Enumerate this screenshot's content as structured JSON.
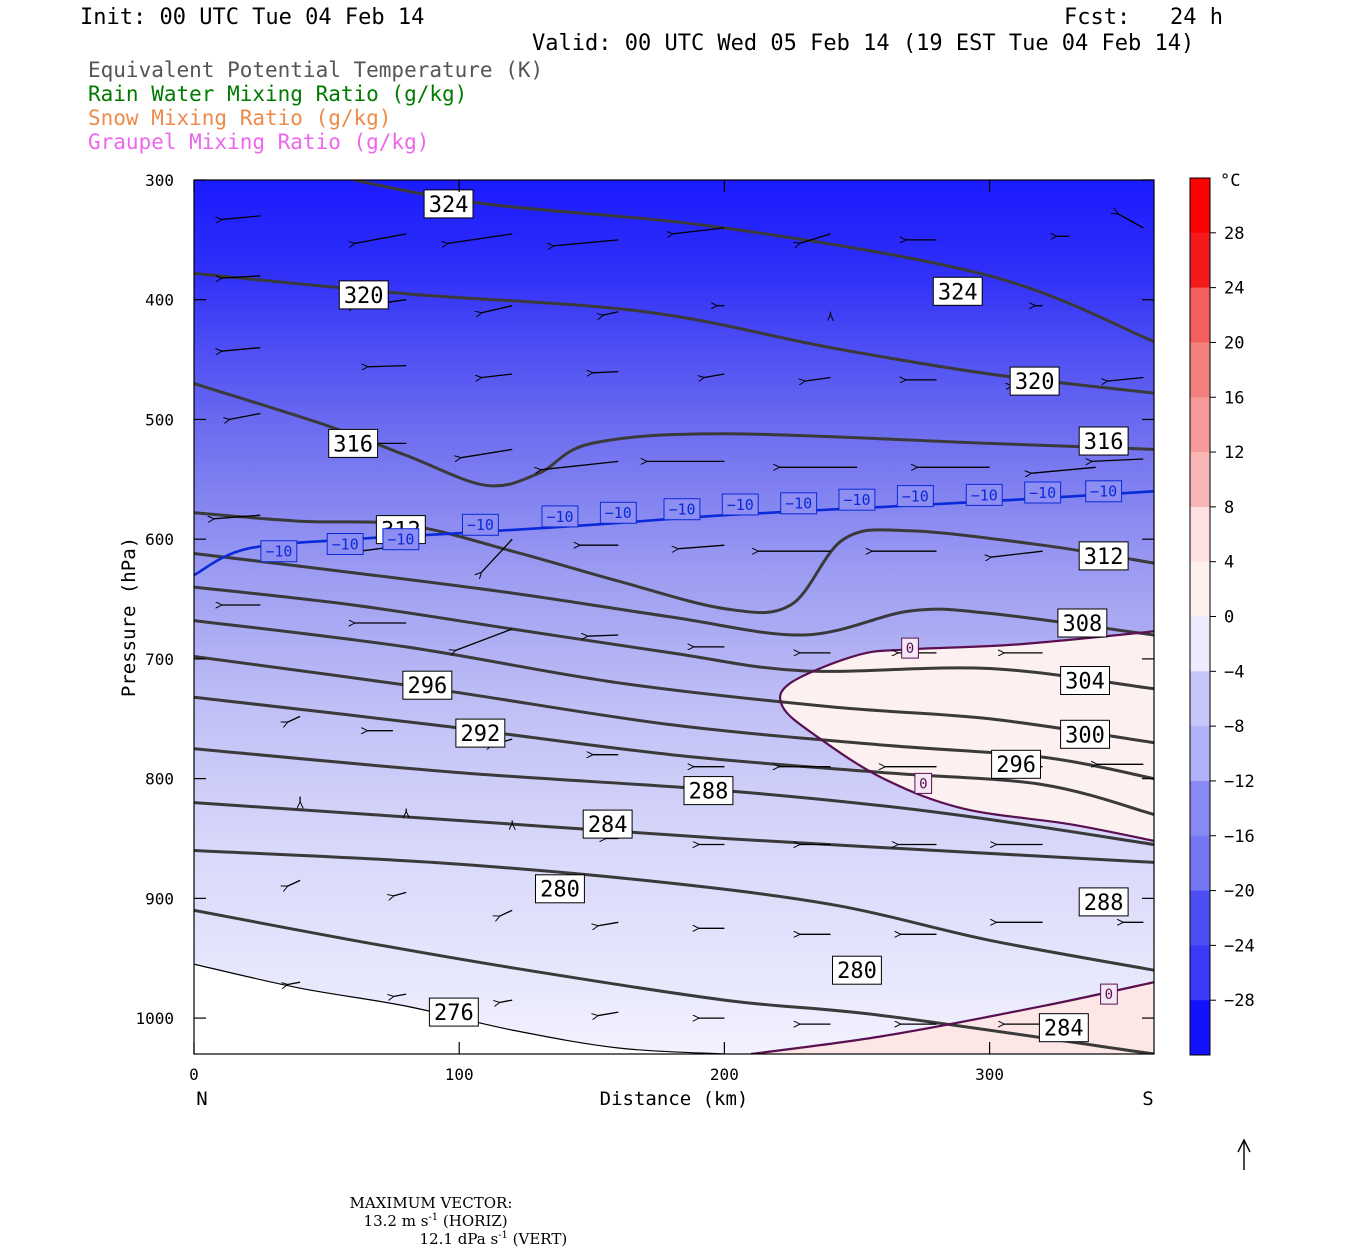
{
  "header": {
    "init": "Init: 00 UTC Tue 04 Feb 14",
    "fcst": "Fcst:   24 h",
    "valid": "Valid: 00 UTC Wed 05 Feb 14 (19 EST Tue 04 Feb 14)"
  },
  "legend": [
    {
      "label": "Equivalent Potential Temperature (K)",
      "color": "#555555"
    },
    {
      "label": "Rain Water Mixing Ratio (g/kg)",
      "color": "#007a00"
    },
    {
      "label": "Snow Mixing Ratio (g/kg)",
      "color": "#ee8a4a"
    },
    {
      "label": "Graupel Mixing Ratio (g/kg)",
      "color": "#ee66ee"
    }
  ],
  "footer": {
    "prefix": "MAXIMUM VECTOR:",
    "horiz": "13.2 m s",
    "horiz_tail": " (HORIZ)",
    "vert": "12.1 dPa s",
    "vert_tail": " (VERT)",
    "exp": "-1"
  },
  "chart_data": {
    "type": "cross-section",
    "xlabel": "Distance (km)",
    "ylabel": "Pressure (hPa)",
    "xlim": [
      0,
      362
    ],
    "ylim": [
      1030,
      300
    ],
    "x_ticks": [
      0,
      100,
      200,
      300
    ],
    "y_ticks": [
      300,
      400,
      500,
      600,
      700,
      800,
      900,
      1000
    ],
    "end_labels": {
      "left": "N",
      "right": "S"
    },
    "colorbar": {
      "unit": "°C",
      "range": [
        -32,
        32
      ],
      "ticks": [
        28,
        24,
        20,
        16,
        12,
        8,
        4,
        0,
        -4,
        -8,
        -12,
        -16,
        -20,
        -24,
        -28
      ]
    },
    "theta_e_contours": [
      {
        "value": 324,
        "points": [
          [
            60,
            300
          ],
          [
            110,
            320
          ],
          [
            200,
            340
          ],
          [
            300,
            380
          ],
          [
            362,
            435
          ]
        ],
        "labels": [
          [
            96,
            320
          ],
          [
            288,
            393
          ]
        ]
      },
      {
        "value": 320,
        "points": [
          [
            0,
            378
          ],
          [
            80,
            395
          ],
          [
            170,
            410
          ],
          [
            240,
            440
          ],
          [
            300,
            462
          ],
          [
            362,
            478
          ]
        ],
        "labels": [
          [
            64,
            396
          ],
          [
            317,
            468
          ]
        ]
      },
      {
        "value": 316,
        "points": [
          [
            0,
            470
          ],
          [
            50,
            505
          ],
          [
            80,
            530
          ],
          [
            110,
            555
          ],
          [
            130,
            545
          ],
          [
            150,
            520
          ],
          [
            200,
            512
          ],
          [
            300,
            520
          ],
          [
            362,
            525
          ]
        ],
        "labels": [
          [
            60,
            520
          ],
          [
            343,
            518
          ]
        ]
      },
      {
        "value": 312,
        "points": [
          [
            0,
            578
          ],
          [
            40,
            585
          ],
          [
            80,
            588
          ],
          [
            120,
            610
          ],
          [
            160,
            635
          ],
          [
            200,
            658
          ],
          [
            225,
            655
          ],
          [
            245,
            600
          ],
          [
            270,
            593
          ],
          [
            320,
            605
          ],
          [
            362,
            620
          ]
        ],
        "labels": [
          [
            78,
            592
          ],
          [
            343,
            614
          ]
        ]
      },
      {
        "value": 308,
        "points": [
          [
            0,
            612
          ],
          [
            60,
            628
          ],
          [
            120,
            645
          ],
          [
            180,
            665
          ],
          [
            230,
            680
          ],
          [
            270,
            660
          ],
          [
            300,
            662
          ],
          [
            362,
            680
          ]
        ],
        "labels": [
          [
            335,
            670
          ]
        ]
      },
      {
        "value": 304,
        "points": [
          [
            0,
            640
          ],
          [
            60,
            655
          ],
          [
            120,
            675
          ],
          [
            180,
            695
          ],
          [
            230,
            710
          ],
          [
            300,
            708
          ],
          [
            362,
            725
          ]
        ],
        "labels": [
          [
            336,
            718
          ]
        ]
      },
      {
        "value": 300,
        "points": [
          [
            0,
            668
          ],
          [
            80,
            690
          ],
          [
            160,
            720
          ],
          [
            240,
            740
          ],
          [
            300,
            750
          ],
          [
            362,
            770
          ]
        ],
        "labels": [
          [
            336,
            763
          ]
        ]
      },
      {
        "value": 296,
        "points": [
          [
            0,
            698
          ],
          [
            90,
            725
          ],
          [
            180,
            755
          ],
          [
            260,
            772
          ],
          [
            320,
            782
          ],
          [
            362,
            800
          ]
        ],
        "labels": [
          [
            88,
            722
          ],
          [
            310,
            788
          ]
        ]
      },
      {
        "value": 292,
        "points": [
          [
            0,
            732
          ],
          [
            90,
            755
          ],
          [
            180,
            780
          ],
          [
            260,
            795
          ],
          [
            320,
            805
          ],
          [
            362,
            830
          ]
        ],
        "labels": [
          [
            108,
            762
          ]
        ]
      },
      {
        "value": 288,
        "points": [
          [
            0,
            775
          ],
          [
            100,
            795
          ],
          [
            200,
            810
          ],
          [
            280,
            828
          ],
          [
            362,
            855
          ]
        ],
        "labels": [
          [
            194,
            810
          ]
        ]
      },
      {
        "value": 284,
        "points": [
          [
            0,
            820
          ],
          [
            100,
            835
          ],
          [
            200,
            850
          ],
          [
            280,
            860
          ],
          [
            362,
            870
          ]
        ],
        "labels": [
          [
            156,
            838
          ]
        ]
      },
      {
        "value": 280,
        "points": [
          [
            0,
            860
          ],
          [
            90,
            870
          ],
          [
            170,
            885
          ],
          [
            240,
            905
          ],
          [
            300,
            935
          ],
          [
            362,
            960
          ]
        ],
        "labels": [
          [
            138,
            892
          ]
        ]
      },
      {
        "value": 276,
        "points": [
          [
            0,
            910
          ],
          [
            60,
            935
          ],
          [
            120,
            958
          ],
          [
            200,
            985
          ],
          [
            260,
            998
          ],
          [
            362,
            1030
          ]
        ],
        "labels": [
          [
            98,
            995
          ]
        ]
      }
    ],
    "extra_contour_labels": [
      {
        "value": 280,
        "at": [
          250,
          960
        ]
      },
      {
        "value": 284,
        "at": [
          328,
          1008
        ]
      },
      {
        "value": 288,
        "at": [
          343,
          903
        ]
      }
    ],
    "isotherm_minus10": {
      "value": -10,
      "points": [
        [
          0,
          630
        ],
        [
          20,
          608
        ],
        [
          60,
          600
        ],
        [
          100,
          595
        ],
        [
          150,
          588
        ],
        [
          200,
          580
        ],
        [
          260,
          573
        ],
        [
          310,
          567
        ],
        [
          362,
          560
        ]
      ],
      "labels": [
        [
          32,
          610
        ],
        [
          57,
          604
        ],
        [
          78,
          600
        ],
        [
          108,
          588
        ],
        [
          138,
          581
        ],
        [
          160,
          578
        ],
        [
          184,
          575
        ],
        [
          206,
          571
        ],
        [
          228,
          570
        ],
        [
          250,
          567
        ],
        [
          272,
          564
        ],
        [
          298,
          563
        ],
        [
          320,
          561
        ],
        [
          343,
          560
        ]
      ]
    },
    "isotherm_zero_upper": {
      "value": 0,
      "points": [
        [
          362,
          677
        ],
        [
          310,
          688
        ],
        [
          270,
          692
        ],
        [
          250,
          697
        ],
        [
          225,
          720
        ],
        [
          222,
          740
        ],
        [
          235,
          765
        ],
        [
          260,
          800
        ],
        [
          290,
          825
        ],
        [
          330,
          838
        ],
        [
          362,
          852
        ]
      ],
      "labels": [
        [
          270,
          691
        ],
        [
          275,
          804
        ]
      ]
    },
    "isotherm_zero_lower": {
      "value": 0,
      "points": [
        [
          210,
          1030
        ],
        [
          260,
          1015
        ],
        [
          320,
          990
        ],
        [
          362,
          970
        ]
      ],
      "labels": [
        [
          345,
          980
        ]
      ]
    },
    "wind_vectors": [
      [
        25,
        330,
        -15,
        3
      ],
      [
        80,
        345,
        -20,
        8
      ],
      [
        120,
        345,
        -25,
        8
      ],
      [
        160,
        350,
        -25,
        5
      ],
      [
        200,
        340,
        -20,
        5
      ],
      [
        240,
        345,
        -12,
        8
      ],
      [
        280,
        350,
        -12,
        0
      ],
      [
        330,
        347,
        -5,
        0
      ],
      [
        358,
        340,
        -10,
        -12
      ],
      [
        25,
        380,
        -15,
        2
      ],
      [
        80,
        400,
        -20,
        6
      ],
      [
        120,
        405,
        -12,
        6
      ],
      [
        160,
        410,
        -6,
        3
      ],
      [
        200,
        405,
        -3,
        0
      ],
      [
        240,
        410,
        0,
        3
      ],
      [
        320,
        405,
        -3,
        0
      ],
      [
        25,
        440,
        -15,
        3
      ],
      [
        80,
        455,
        -15,
        1
      ],
      [
        120,
        462,
        -12,
        3
      ],
      [
        160,
        460,
        -10,
        1
      ],
      [
        200,
        462,
        -8,
        3
      ],
      [
        240,
        465,
        -10,
        3
      ],
      [
        280,
        467,
        -12,
        0
      ],
      [
        320,
        470,
        -12,
        2
      ],
      [
        358,
        465,
        -14,
        3
      ],
      [
        25,
        495,
        -12,
        5
      ],
      [
        80,
        520,
        -15,
        0
      ],
      [
        120,
        525,
        -20,
        7
      ],
      [
        160,
        535,
        -30,
        7
      ],
      [
        200,
        535,
        -30,
        0
      ],
      [
        250,
        540,
        -30,
        0
      ],
      [
        300,
        540,
        -28,
        0
      ],
      [
        340,
        540,
        -25,
        5
      ],
      [
        358,
        533,
        -20,
        2
      ],
      [
        25,
        580,
        -18,
        3
      ],
      [
        80,
        605,
        -18,
        5
      ],
      [
        120,
        600,
        -12,
        28
      ],
      [
        160,
        605,
        -15,
        0
      ],
      [
        200,
        605,
        -18,
        3
      ],
      [
        240,
        610,
        -28,
        0
      ],
      [
        280,
        610,
        -25,
        0
      ],
      [
        320,
        610,
        -20,
        5
      ],
      [
        25,
        655,
        -15,
        0
      ],
      [
        80,
        670,
        -20,
        0
      ],
      [
        120,
        675,
        -22,
        18
      ],
      [
        160,
        680,
        -12,
        1
      ],
      [
        200,
        690,
        -12,
        0
      ],
      [
        240,
        695,
        -12,
        0
      ],
      [
        280,
        695,
        -15,
        0
      ],
      [
        320,
        695,
        -15,
        0
      ],
      [
        40,
        748,
        -5,
        5
      ],
      [
        75,
        760,
        -10,
        0
      ],
      [
        120,
        767,
        -8,
        5
      ],
      [
        160,
        780,
        -10,
        0
      ],
      [
        200,
        790,
        -12,
        0
      ],
      [
        240,
        790,
        -20,
        0
      ],
      [
        280,
        790,
        -20,
        0
      ],
      [
        320,
        790,
        -12,
        0
      ],
      [
        358,
        788,
        -18,
        0
      ],
      [
        40,
        815,
        0,
        5
      ],
      [
        80,
        825,
        0,
        3
      ],
      [
        120,
        835,
        0,
        3
      ],
      [
        160,
        850,
        -5,
        0
      ],
      [
        200,
        855,
        -10,
        0
      ],
      [
        240,
        855,
        -12,
        0
      ],
      [
        280,
        855,
        -15,
        0
      ],
      [
        320,
        855,
        -18,
        0
      ],
      [
        40,
        885,
        -5,
        5
      ],
      [
        80,
        895,
        -5,
        3
      ],
      [
        120,
        910,
        -5,
        5
      ],
      [
        160,
        920,
        -8,
        3
      ],
      [
        200,
        925,
        -10,
        0
      ],
      [
        240,
        930,
        -12,
        0
      ],
      [
        280,
        930,
        -14,
        0
      ],
      [
        320,
        920,
        -18,
        0
      ],
      [
        358,
        920,
        -8,
        0
      ],
      [
        40,
        970,
        -5,
        2
      ],
      [
        80,
        980,
        -5,
        2
      ],
      [
        120,
        985,
        -5,
        2
      ],
      [
        160,
        995,
        -8,
        3
      ],
      [
        200,
        1000,
        -10,
        0
      ],
      [
        240,
        1005,
        -12,
        0
      ],
      [
        280,
        1005,
        -14,
        0
      ],
      [
        320,
        1005,
        -15,
        0
      ]
    ]
  }
}
